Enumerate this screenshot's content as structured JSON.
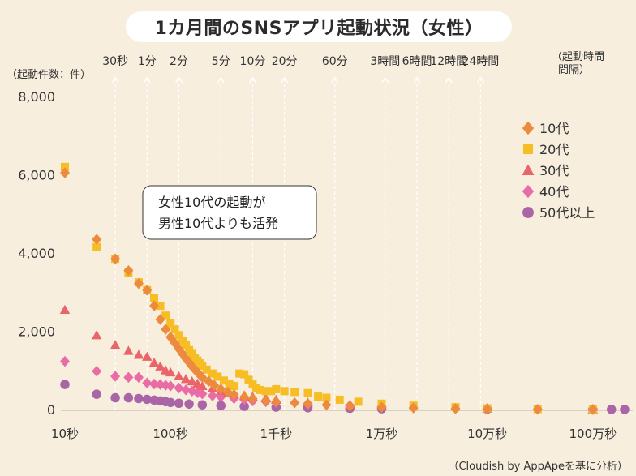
{
  "title": "1カ月間のSNSアプリ起動状況（女性）",
  "source": "（Cloudish by AppApeを基に分析）",
  "colors": {
    "background": "#f7eede",
    "axis": "#444444",
    "grid_dash": "#ffffff",
    "10s": "#ec8a3e",
    "20s": "#f6bd25",
    "30s": "#e9656a",
    "40s": "#ea6ca6",
    "50s": "#a965a6"
  },
  "chart_data": {
    "type": "scatter",
    "title": "1カ月間のSNSアプリ起動状況（女性）",
    "ylabel": "（起動件数：件）",
    "xlabel_right": [
      "（起動時間",
      "間隔）"
    ],
    "ylim": [
      0,
      8000
    ],
    "yticks": [
      0,
      2000,
      4000,
      6000,
      8000
    ],
    "ytick_labels": [
      "0",
      "2,000",
      "4,000",
      "6,000",
      "8,000"
    ],
    "x_scale": "log",
    "x_unit": "seconds",
    "xlim": [
      10,
      2000000
    ],
    "bottom_ticks": [
      {
        "value": 10,
        "label": "10秒"
      },
      {
        "value": 100,
        "label": "100秒"
      },
      {
        "value": 1000,
        "label": "1千秒"
      },
      {
        "value": 10000,
        "label": "1万秒"
      },
      {
        "value": 100000,
        "label": "10万秒"
      },
      {
        "value": 1000000,
        "label": "100万秒"
      }
    ],
    "top_ticks": [
      {
        "value": 30,
        "label": "30秒"
      },
      {
        "value": 60,
        "label": "1分"
      },
      {
        "value": 120,
        "label": "2分"
      },
      {
        "value": 300,
        "label": "5分"
      },
      {
        "value": 600,
        "label": "10分"
      },
      {
        "value": 1200,
        "label": "20分"
      },
      {
        "value": 3600,
        "label": "60分"
      },
      {
        "value": 10800,
        "label": "3時間"
      },
      {
        "value": 21600,
        "label": "6時間"
      },
      {
        "value": 43200,
        "label": "12時間"
      },
      {
        "value": 86400,
        "label": "24時間"
      }
    ],
    "annotation": [
      "女性10代の起動が",
      "男性10代よりも活発"
    ],
    "legend_position": "top-right",
    "series": [
      {
        "name": "10代",
        "marker": "diamond",
        "color": "#ec8a3e",
        "x": [
          10,
          20,
          30,
          40,
          50,
          60,
          70,
          80,
          90,
          100,
          110,
          120,
          130,
          140,
          150,
          160,
          170,
          180,
          190,
          200,
          230,
          260,
          300,
          350,
          400,
          500,
          600,
          800,
          1000,
          1500,
          2000,
          3000,
          5000,
          10000,
          20000,
          50000,
          100000,
          300000,
          1000000
        ],
        "y": [
          6050,
          4350,
          3850,
          3550,
          3220,
          3050,
          2650,
          2300,
          2050,
          1850,
          1700,
          1550,
          1420,
          1300,
          1200,
          1100,
          1020,
          950,
          880,
          820,
          720,
          620,
          520,
          440,
          380,
          320,
          280,
          230,
          200,
          170,
          150,
          120,
          90,
          60,
          40,
          20,
          10,
          5,
          2
        ]
      },
      {
        "name": "20代",
        "marker": "square",
        "color": "#f6bd25",
        "x": [
          10,
          20,
          30,
          40,
          50,
          60,
          70,
          80,
          90,
          100,
          110,
          120,
          130,
          140,
          150,
          160,
          170,
          180,
          190,
          200,
          220,
          250,
          280,
          320,
          360,
          400,
          450,
          500,
          550,
          600,
          650,
          700,
          800,
          900,
          1000,
          1200,
          1500,
          2000,
          2500,
          3000,
          4000,
          6000,
          10000,
          20000,
          50000,
          100000,
          300000,
          1000000
        ],
        "y": [
          6200,
          4150,
          3850,
          3500,
          3250,
          3050,
          2850,
          2650,
          2400,
          2200,
          2050,
          1900,
          1750,
          1650,
          1520,
          1420,
          1320,
          1250,
          1180,
          1120,
          1020,
          920,
          840,
          740,
          650,
          600,
          920,
          900,
          760,
          640,
          560,
          500,
          470,
          470,
          520,
          470,
          450,
          420,
          330,
          300,
          250,
          200,
          150,
          100,
          60,
          30,
          10,
          3
        ]
      },
      {
        "name": "30代",
        "marker": "triangle",
        "color": "#e9656a",
        "x": [
          10,
          20,
          30,
          40,
          50,
          60,
          70,
          80,
          90,
          100,
          120,
          140,
          160,
          180,
          200,
          250,
          300,
          350,
          400,
          500,
          600,
          800,
          1000,
          2000,
          5000,
          10000,
          100000,
          1000000
        ],
        "y": [
          2550,
          1900,
          1650,
          1500,
          1400,
          1350,
          1200,
          1100,
          1000,
          950,
          850,
          780,
          720,
          660,
          600,
          540,
          480,
          430,
          400,
          360,
          330,
          290,
          250,
          180,
          120,
          80,
          20,
          3
        ]
      },
      {
        "name": "40代",
        "marker": "diamond",
        "color": "#ea6ca6",
        "x": [
          10,
          20,
          30,
          40,
          50,
          60,
          70,
          80,
          90,
          100,
          120,
          140,
          160,
          180,
          200,
          250,
          300,
          400,
          500,
          600,
          800,
          1000,
          2000,
          5000,
          10000,
          100000,
          1000000
        ],
        "y": [
          1230,
          980,
          850,
          820,
          820,
          680,
          650,
          640,
          620,
          600,
          550,
          500,
          470,
          430,
          400,
          350,
          320,
          280,
          250,
          220,
          200,
          180,
          140,
          100,
          70,
          20,
          3
        ]
      },
      {
        "name": "50代以上",
        "marker": "circle",
        "color": "#a965a6",
        "x": [
          10,
          20,
          30,
          40,
          50,
          60,
          70,
          80,
          90,
          100,
          120,
          150,
          200,
          300,
          500,
          1000,
          2000,
          5000,
          10000,
          100000,
          1000000,
          1500000,
          2000000
        ],
        "y": [
          640,
          390,
          300,
          300,
          280,
          260,
          240,
          220,
          200,
          180,
          160,
          140,
          120,
          100,
          80,
          60,
          45,
          30,
          20,
          8,
          2,
          2,
          2
        ]
      }
    ]
  }
}
